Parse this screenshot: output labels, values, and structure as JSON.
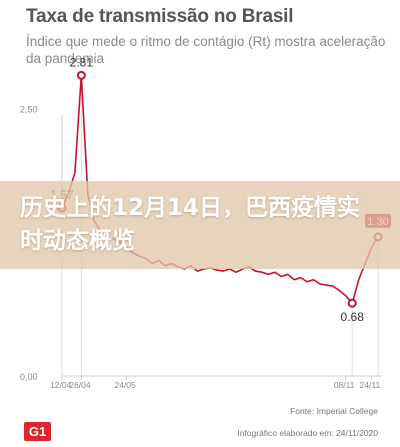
{
  "chart_data": {
    "type": "line",
    "title": "Taxa de transmissão no Brasil",
    "subtitle": "Índice que mede o ritmo de contágio (Rt) mostra aceleração da pandemia",
    "x_tick_labels": [
      "12/04",
      "26/04",
      "24/05",
      "08/11",
      "24/11"
    ],
    "y_tick_labels": [
      "0,00",
      "2,50"
    ],
    "ylim": [
      0,
      3
    ],
    "grid": false,
    "series": [
      {
        "color": "#c8102e",
        "values": [
          1.57,
          1.7,
          1.9,
          2.81,
          1.7,
          1.45,
          1.35,
          1.3,
          1.28,
          1.25,
          1.2,
          1.15,
          1.12,
          1.1,
          1.05,
          1.08,
          1.03,
          1.05,
          1.02,
          1.0,
          1.03,
          0.98,
          1.0,
          1.01,
          0.99,
          0.98,
          1.0,
          0.97,
          1.0,
          1.02,
          0.98,
          0.97,
          0.95,
          0.97,
          0.93,
          0.95,
          0.9,
          0.92,
          0.88,
          0.9,
          0.86,
          0.85,
          0.84,
          0.8,
          0.75,
          0.68,
          0.9,
          1.05,
          1.2,
          1.3
        ]
      }
    ],
    "annotations": [
      {
        "label": "2.81",
        "index": 3
      },
      {
        "label": "1.57",
        "index": 0
      },
      {
        "label": "0.68",
        "index": 45
      },
      {
        "label": "1.30",
        "index": 49
      }
    ]
  },
  "overlay_text": "历史上的12月14日，巴西疫情实时动态概览",
  "source": "Fonte: Imperial College",
  "credit": "Infográfico elaborado em: 24/11/2020",
  "logo": "G1"
}
